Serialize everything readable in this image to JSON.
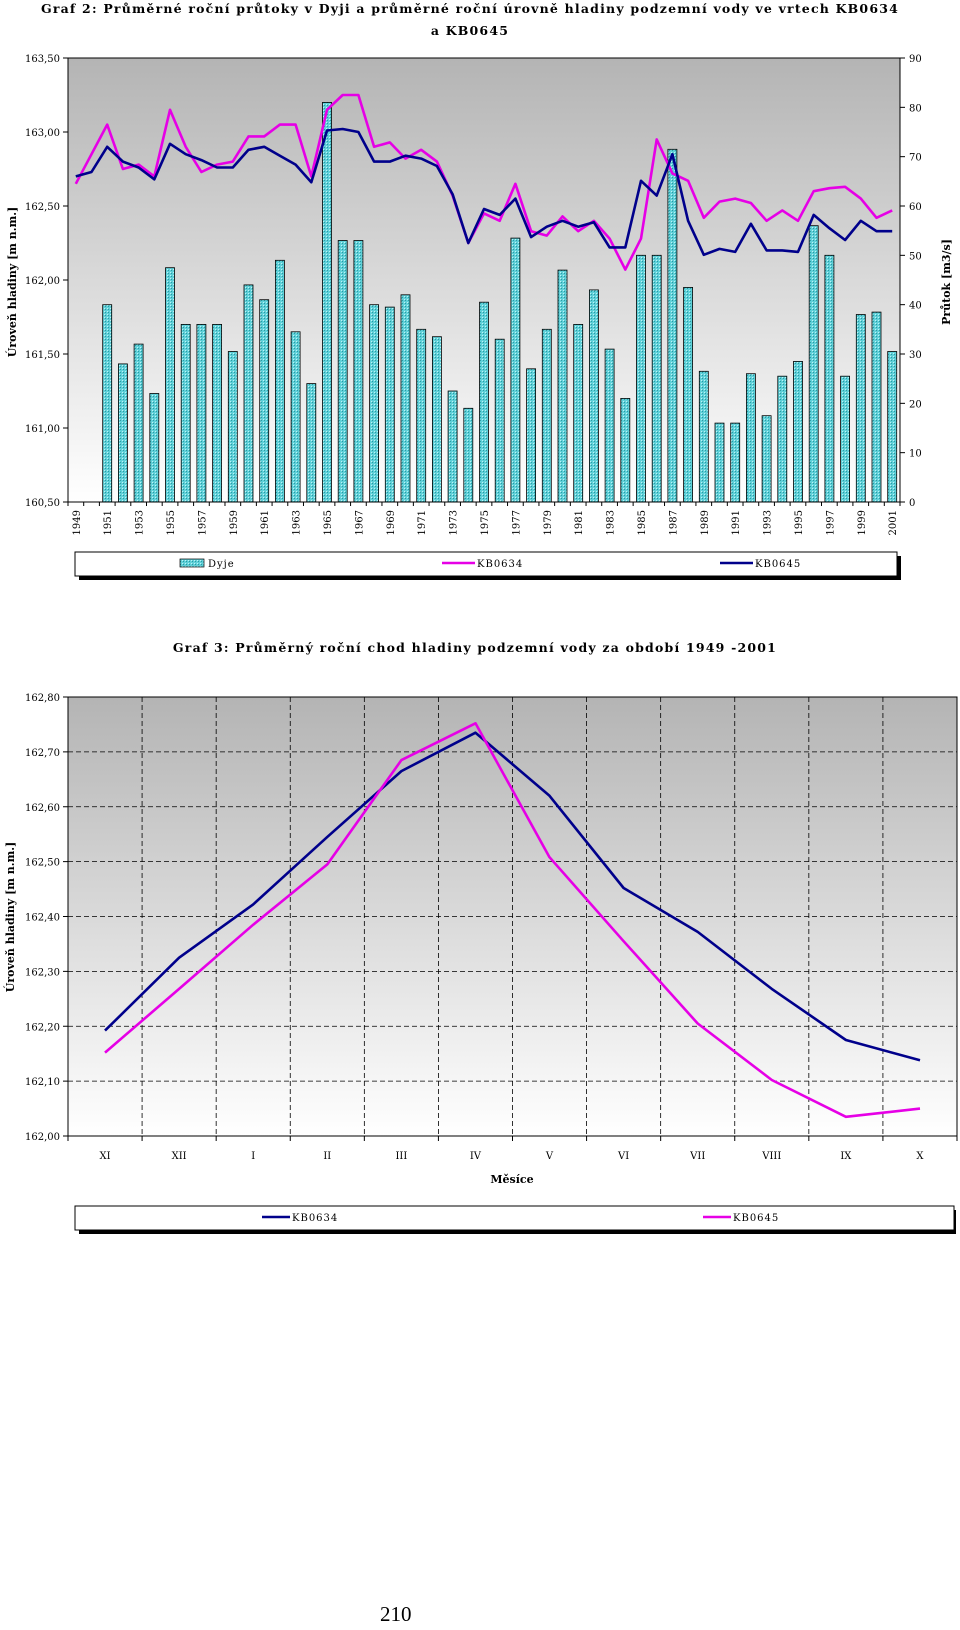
{
  "chart_data": [
    {
      "type": "bar+line",
      "title": "Graf 2: Průměrné roční průtoky v Dyji a průměrné roční úrovně hladiny podzemní vody ve vrtech KB0634",
      "title_line2": "a KB0645",
      "ylabel": "Úroveň hladiny [m n.m.]",
      "y2label": "Průtok [m3/s]",
      "ylim": [
        160.5,
        163.5
      ],
      "y2lim": [
        0,
        90
      ],
      "yticks": [
        "163,50",
        "163,00",
        "162,50",
        "162,00",
        "161,50",
        "161,00",
        "160,50"
      ],
      "y2ticks": [
        "90",
        "80",
        "70",
        "60",
        "50",
        "40",
        "30",
        "20",
        "10",
        "0"
      ],
      "xticks": [
        "1949",
        "1951",
        "1953",
        "1955",
        "1957",
        "1959",
        "1961",
        "1963",
        "1965",
        "1967",
        "1969",
        "1971",
        "1973",
        "1975",
        "1977",
        "1979",
        "1981",
        "1983",
        "1985",
        "1987",
        "1989",
        "1991",
        "1993",
        "1995",
        "1997",
        "1999",
        "2001"
      ],
      "years": [
        1949,
        1950,
        1951,
        1952,
        1953,
        1954,
        1955,
        1956,
        1957,
        1958,
        1959,
        1960,
        1961,
        1962,
        1963,
        1964,
        1965,
        1966,
        1967,
        1968,
        1969,
        1970,
        1971,
        1972,
        1973,
        1974,
        1975,
        1976,
        1977,
        1978,
        1979,
        1980,
        1981,
        1982,
        1983,
        1984,
        1985,
        1986,
        1987,
        1988,
        1989,
        1990,
        1991,
        1992,
        1993,
        1994,
        1995,
        1996,
        1997,
        1998,
        1999,
        2000,
        2001
      ],
      "series": [
        {
          "name": "Dyje",
          "type": "bar",
          "axis": "right",
          "color": "#5fd0d8",
          "values": [
            null,
            null,
            40,
            28,
            32,
            22,
            47.5,
            36,
            36,
            36,
            30.5,
            44,
            41,
            49,
            34.5,
            24,
            81,
            53,
            53,
            40,
            39.5,
            42,
            35,
            33.5,
            22.5,
            19,
            40.5,
            33,
            53.5,
            27,
            35,
            47,
            36,
            43,
            31,
            21,
            50,
            50,
            71.5,
            43.5,
            26.5,
            16,
            16,
            26,
            17.5,
            25.5,
            28.5,
            56,
            50,
            25.5,
            38,
            38.5,
            30.5
          ]
        },
        {
          "name": "KB0634",
          "type": "line",
          "axis": "left",
          "color": "#e600e6",
          "values": [
            162.65,
            162.85,
            163.05,
            162.75,
            162.78,
            162.7,
            163.15,
            162.9,
            162.73,
            162.78,
            162.8,
            162.97,
            162.97,
            163.05,
            163.05,
            162.7,
            163.15,
            163.25,
            163.25,
            162.9,
            162.93,
            162.82,
            162.88,
            162.8,
            162.57,
            162.25,
            162.45,
            162.4,
            162.65,
            162.33,
            162.3,
            162.43,
            162.33,
            162.4,
            162.28,
            162.07,
            162.28,
            162.95,
            162.72,
            162.67,
            162.42,
            162.53,
            162.55,
            162.52,
            162.4,
            162.47,
            162.4,
            162.6,
            162.62,
            162.63,
            162.55,
            162.42,
            162.47
          ]
        },
        {
          "name": "KB0645",
          "type": "line",
          "axis": "left",
          "color": "#00008b",
          "values": [
            162.7,
            162.73,
            162.9,
            162.8,
            162.76,
            162.68,
            162.92,
            162.85,
            162.81,
            162.76,
            162.76,
            162.88,
            162.9,
            162.84,
            162.78,
            162.66,
            163.01,
            163.02,
            163.0,
            162.8,
            162.8,
            162.84,
            162.82,
            162.77,
            162.58,
            162.25,
            162.48,
            162.44,
            162.55,
            162.29,
            162.36,
            162.4,
            162.36,
            162.39,
            162.22,
            162.22,
            162.67,
            162.57,
            162.85,
            162.4,
            162.17,
            162.21,
            162.19,
            162.38,
            162.2,
            162.2,
            162.19,
            162.44,
            162.35,
            162.27,
            162.4,
            162.33,
            162.33
          ]
        }
      ],
      "legend_position": "bottom"
    },
    {
      "type": "line",
      "title": "Graf 3: Průměrný roční chod hladiny podzemní vody za období 1949 -2001",
      "xlabel": "Měsíce",
      "ylabel": "Úroveň hladiny [m n.m.]",
      "ylim": [
        162.0,
        162.8
      ],
      "yticks": [
        "162,80",
        "162,70",
        "162,60",
        "162,50",
        "162,40",
        "162,30",
        "162,20",
        "162,10",
        "162,00"
      ],
      "categories": [
        "XI",
        "XII",
        "I",
        "II",
        "III",
        "IV",
        "V",
        "VI",
        "VII",
        "VIII",
        "IX",
        "X"
      ],
      "series": [
        {
          "name": "KB0634",
          "color": "#00008b",
          "values": [
            162.192,
            162.325,
            162.422,
            162.545,
            162.665,
            162.735,
            162.62,
            162.452,
            162.372,
            162.268,
            162.175,
            162.138
          ]
        },
        {
          "name": "KB0645",
          "color": "#e600e6",
          "values": [
            162.152,
            162.268,
            162.385,
            162.495,
            162.685,
            162.752,
            162.508,
            162.355,
            162.205,
            162.102,
            162.035,
            162.05
          ]
        }
      ],
      "grid": true,
      "legend_position": "bottom"
    }
  ],
  "page_number": "210"
}
